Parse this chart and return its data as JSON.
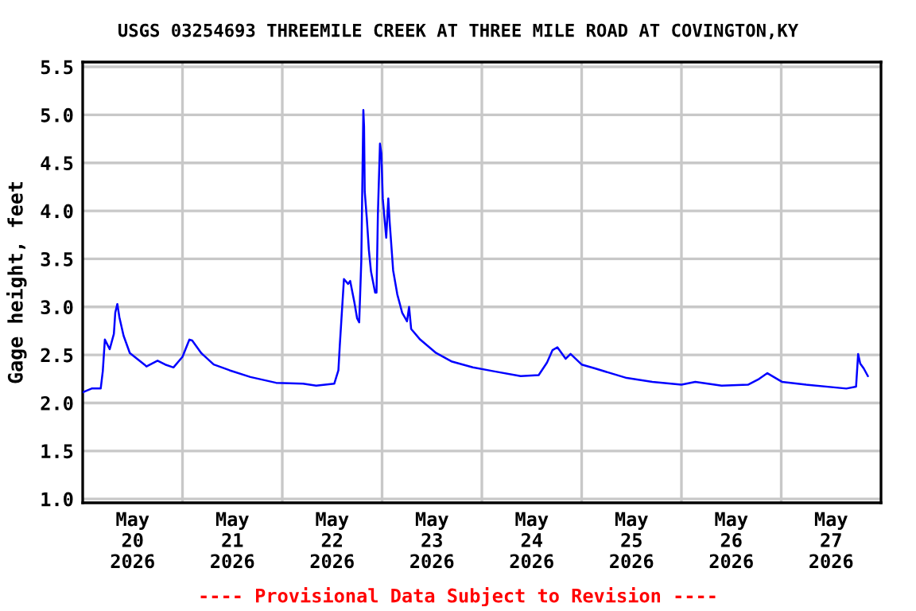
{
  "chart_data": {
    "type": "line",
    "title": "USGS 03254693 THREEMILE CREEK AT THREE MILE ROAD AT COVINGTON,KY",
    "ylabel": "Gage height, feet",
    "annotations": [
      "---- Provisional Data Subject to Revision ----"
    ],
    "grid": true,
    "marker": "none",
    "line_style": "solid",
    "xlim": [
      "2026-05-20T00:00",
      "2026-05-28T00:00"
    ],
    "xticks": [
      {
        "value": "2026-05-20T12:00",
        "label": "May\n20\n2026"
      },
      {
        "value": "2026-05-21T12:00",
        "label": "May\n21\n2026"
      },
      {
        "value": "2026-05-22T12:00",
        "label": "May\n22\n2026"
      },
      {
        "value": "2026-05-23T12:00",
        "label": "May\n23\n2026"
      },
      {
        "value": "2026-05-24T12:00",
        "label": "May\n24\n2026"
      },
      {
        "value": "2026-05-25T12:00",
        "label": "May\n25\n2026"
      },
      {
        "value": "2026-05-26T12:00",
        "label": "May\n26\n2026"
      },
      {
        "value": "2026-05-27T12:00",
        "label": "May\n27\n2026"
      },
      {
        "value": "2026-05-21T00:00",
        "label": null
      },
      {
        "value": "2026-05-22T00:00",
        "label": null
      },
      {
        "value": "2026-05-23T00:00",
        "label": null
      },
      {
        "value": "2026-05-24T00:00",
        "label": null
      },
      {
        "value": "2026-05-25T00:00",
        "label": null
      },
      {
        "value": "2026-05-26T00:00",
        "label": null
      },
      {
        "value": "2026-05-27T00:00",
        "label": null
      }
    ],
    "ylim": [
      0.96,
      5.55
    ],
    "yticks": [
      {
        "value": 1.0,
        "label": "1.0"
      },
      {
        "value": 1.5,
        "label": "1.5"
      },
      {
        "value": 2.0,
        "label": "2.0"
      },
      {
        "value": 2.5,
        "label": "2.5"
      },
      {
        "value": 3.0,
        "label": "3.0"
      },
      {
        "value": 3.5,
        "label": "3.5"
      },
      {
        "value": 4.0,
        "label": "4.0"
      },
      {
        "value": 4.5,
        "label": "4.5"
      },
      {
        "value": 5.0,
        "label": "5.0"
      },
      {
        "value": 5.5,
        "label": "5.5"
      }
    ],
    "series": [
      {
        "color": "#0000ff",
        "x": [
          "2026-05-20T00:00",
          "2026-05-20T02:10",
          "2026-05-20T04:20",
          "2026-05-20T04:50",
          "2026-05-20T05:20",
          "2026-05-20T06:30",
          "2026-05-20T07:30",
          "2026-05-20T07:50",
          "2026-05-20T08:20",
          "2026-05-20T08:50",
          "2026-05-20T09:50",
          "2026-05-20T11:20",
          "2026-05-20T14:50",
          "2026-05-20T15:20",
          "2026-05-20T18:00",
          "2026-05-20T19:50",
          "2026-05-20T21:50",
          "2026-05-21T00:00",
          "2026-05-21T01:40",
          "2026-05-21T02:20",
          "2026-05-21T04:30",
          "2026-05-21T07:30",
          "2026-05-21T11:20",
          "2026-05-21T16:20",
          "2026-05-21T22:30",
          "2026-05-22T05:00",
          "2026-05-22T08:10",
          "2026-05-22T12:30",
          "2026-05-22T13:30",
          "2026-05-22T13:50",
          "2026-05-22T14:50",
          "2026-05-22T15:50",
          "2026-05-22T16:20",
          "2026-05-22T17:20",
          "2026-05-22T18:00",
          "2026-05-22T18:30",
          "2026-05-22T19:00",
          "2026-05-22T19:30",
          "2026-05-22T19:40",
          "2026-05-22T19:50",
          "2026-05-22T20:20",
          "2026-05-22T20:50",
          "2026-05-22T21:20",
          "2026-05-22T22:20",
          "2026-05-22T22:40",
          "2026-05-22T23:00",
          "2026-05-22T23:30",
          "2026-05-22T23:50",
          "2026-05-23T00:10",
          "2026-05-23T01:00",
          "2026-05-23T01:30",
          "2026-05-23T01:50",
          "2026-05-23T02:40",
          "2026-05-23T03:40",
          "2026-05-23T04:50",
          "2026-05-23T06:00",
          "2026-05-23T06:30",
          "2026-05-23T07:00",
          "2026-05-23T09:10",
          "2026-05-23T13:00",
          "2026-05-23T16:50",
          "2026-05-23T21:50",
          "2026-05-24T02:50",
          "2026-05-24T09:20",
          "2026-05-24T13:40",
          "2026-05-24T15:40",
          "2026-05-24T17:00",
          "2026-05-24T18:10",
          "2026-05-24T20:10",
          "2026-05-24T21:20",
          "2026-05-25T00:00",
          "2026-05-25T03:10",
          "2026-05-25T10:50",
          "2026-05-25T17:00",
          "2026-05-26T00:00",
          "2026-05-26T03:20",
          "2026-05-26T09:40",
          "2026-05-26T16:00",
          "2026-05-26T18:40",
          "2026-05-26T20:40",
          "2026-05-27T00:10",
          "2026-05-27T06:00",
          "2026-05-27T15:40",
          "2026-05-27T18:00",
          "2026-05-27T18:30",
          "2026-05-27T19:00",
          "2026-05-27T19:50",
          "2026-05-27T20:50"
        ],
        "values": [
          2.11,
          2.15,
          2.15,
          2.33,
          2.66,
          2.56,
          2.72,
          2.94,
          3.03,
          2.89,
          2.7,
          2.52,
          2.4,
          2.38,
          2.44,
          2.4,
          2.37,
          2.48,
          2.66,
          2.65,
          2.52,
          2.4,
          2.34,
          2.27,
          2.21,
          2.2,
          2.18,
          2.2,
          2.34,
          2.6,
          3.29,
          3.24,
          3.27,
          3.05,
          2.88,
          2.84,
          3.47,
          5.05,
          4.88,
          4.2,
          3.92,
          3.59,
          3.37,
          3.15,
          3.15,
          3.97,
          4.7,
          4.6,
          4.13,
          3.72,
          4.13,
          3.88,
          3.38,
          3.13,
          2.94,
          2.85,
          3.0,
          2.77,
          2.66,
          2.52,
          2.43,
          2.37,
          2.33,
          2.28,
          2.29,
          2.42,
          2.55,
          2.58,
          2.46,
          2.51,
          2.4,
          2.36,
          2.26,
          2.22,
          2.19,
          2.22,
          2.18,
          2.19,
          2.25,
          2.31,
          2.22,
          2.19,
          2.15,
          2.17,
          2.51,
          2.41,
          2.36,
          2.28
        ]
      }
    ]
  }
}
